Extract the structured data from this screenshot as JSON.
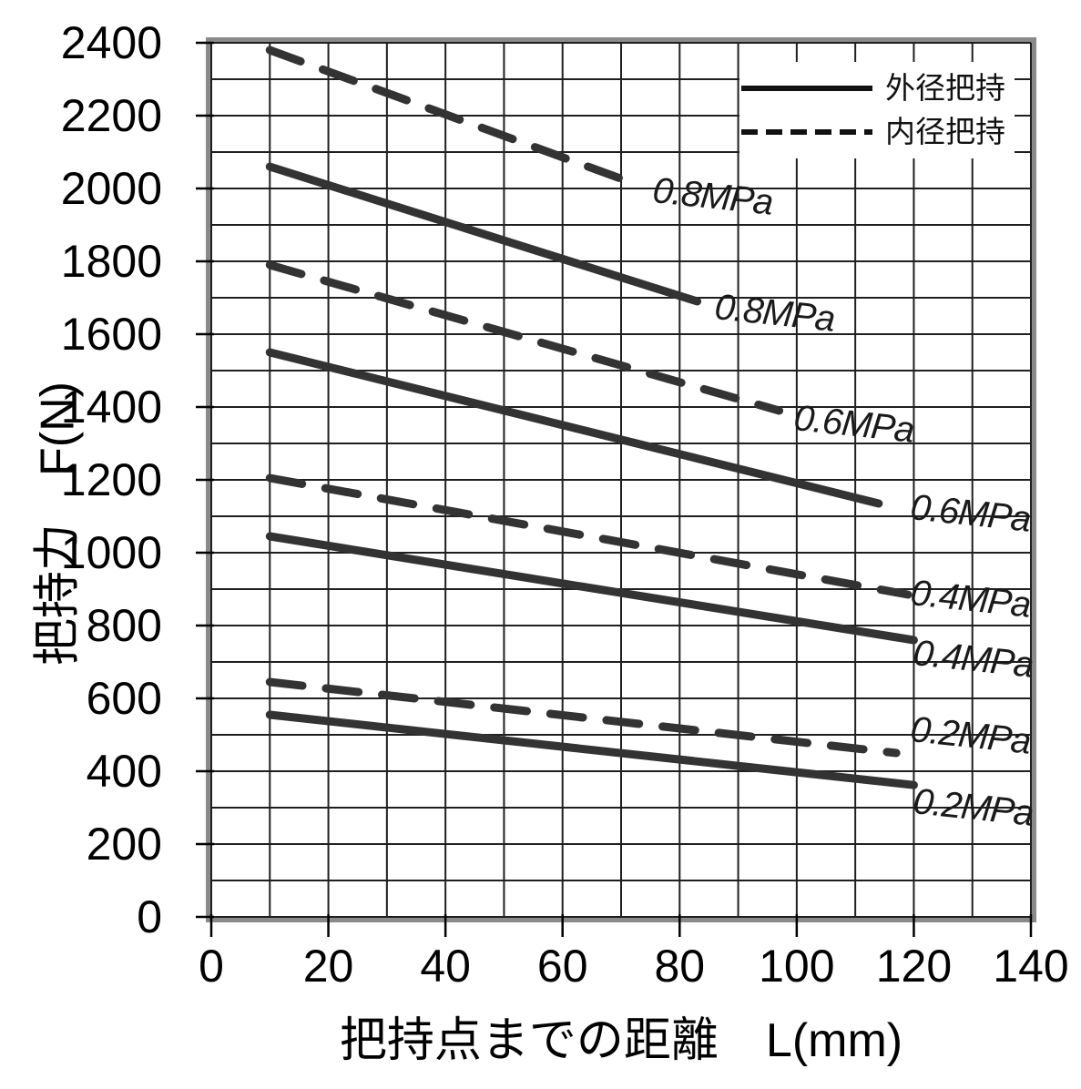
{
  "figure": {
    "background": "#ffffff"
  },
  "chart_data": {
    "type": "line",
    "title": "",
    "xlabel": "把持点までの距離　L(mm)",
    "ylabel": "把持力　F(N)",
    "xlim": [
      0,
      140
    ],
    "ylim": [
      0,
      2400
    ],
    "x_major_ticks": [
      0,
      20,
      40,
      60,
      80,
      100,
      120,
      140
    ],
    "y_major_ticks": [
      0,
      200,
      400,
      600,
      800,
      1000,
      1200,
      1400,
      1600,
      1800,
      2000,
      2200,
      2400
    ],
    "x_minor_step": 10,
    "y_minor_step": 100,
    "grid": "on-both-minor",
    "legend": {
      "position": "top-right",
      "items": [
        {
          "label": "外径把持",
          "style": "solid"
        },
        {
          "label": "内径把持",
          "style": "dashed"
        }
      ]
    },
    "series": [
      {
        "name": "外径把持 0.8MPa",
        "grip": "外径把持",
        "style": "solid",
        "label": "0.8MPa",
        "points": [
          [
            10,
            2060
          ],
          [
            83,
            1690
          ]
        ],
        "label_anchor": [
          86,
          1675
        ]
      },
      {
        "name": "内径把持 0.8MPa",
        "grip": "内径把持",
        "style": "dashed",
        "label": "0.8MPa",
        "points": [
          [
            10,
            2380
          ],
          [
            72,
            2015
          ]
        ],
        "label_anchor": [
          75.5,
          1995
        ]
      },
      {
        "name": "外径把持 0.6MPa",
        "grip": "外径把持",
        "style": "solid",
        "label": "0.6MPa",
        "points": [
          [
            10,
            1550
          ],
          [
            114,
            1135
          ]
        ],
        "label_anchor": [
          119.5,
          1125
        ]
      },
      {
        "name": "内径把持 0.6MPa",
        "grip": "内径把持",
        "style": "dashed",
        "label": "0.6MPa",
        "points": [
          [
            10,
            1790
          ],
          [
            97,
            1390
          ]
        ],
        "label_anchor": [
          99.5,
          1370
        ]
      },
      {
        "name": "外径把持 0.4MPa",
        "grip": "外径把持",
        "style": "solid",
        "label": "0.4MPa",
        "points": [
          [
            10,
            1045
          ],
          [
            120,
            760
          ]
        ],
        "label_anchor": [
          120,
          725
        ]
      },
      {
        "name": "内径把持 0.4MPa",
        "grip": "内径把持",
        "style": "dashed",
        "label": "0.4MPa",
        "points": [
          [
            10,
            1205
          ],
          [
            119,
            885
          ]
        ],
        "label_anchor": [
          119.5,
          890
        ]
      },
      {
        "name": "外径把持 0.2MPa",
        "grip": "外径把持",
        "style": "solid",
        "label": "0.2MPa",
        "points": [
          [
            10,
            555
          ],
          [
            120,
            362
          ]
        ],
        "label_anchor": [
          120,
          318
        ]
      },
      {
        "name": "内径把持 0.2MPa",
        "grip": "内径把持",
        "style": "dashed",
        "label": "0.2MPa",
        "points": [
          [
            10,
            645
          ],
          [
            117,
            450
          ]
        ],
        "label_anchor": [
          119.5,
          515
        ]
      }
    ],
    "colors": {
      "line": "#333333",
      "grid": "#1f1f1f",
      "frame": "#8a8a8a",
      "text": "#000000",
      "background": "#ffffff"
    }
  }
}
